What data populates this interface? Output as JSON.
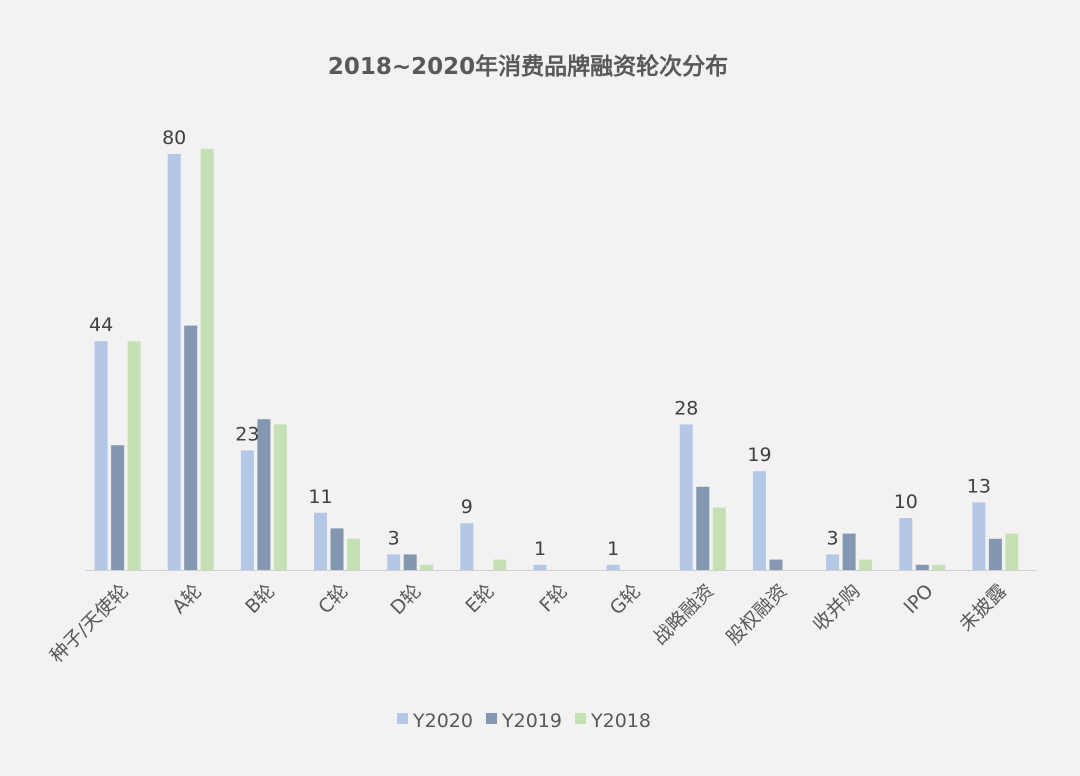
{
  "chart_data": {
    "type": "bar",
    "title": "2018~2020年消费品牌融资轮次分布",
    "xlabel": "",
    "ylabel": "",
    "ylim": [
      0,
      82
    ],
    "grid": false,
    "legend_position": "bottom",
    "categories": [
      "种子/天使轮",
      "A轮",
      "B轮",
      "C轮",
      "D轮",
      "E轮",
      "F轮",
      "G轮",
      "战略融资",
      "股权融资",
      "收并购",
      "IPO",
      "未披露"
    ],
    "series": [
      {
        "name": "Y2020",
        "color": "#b4c7e7",
        "values": [
          44,
          80,
          23,
          11,
          3,
          9,
          1,
          1,
          28,
          19,
          3,
          10,
          13
        ],
        "labels": [
          "44",
          "80",
          "23",
          "11",
          "3",
          "9",
          "1",
          "1",
          "28",
          "19",
          "3",
          "10",
          "13"
        ]
      },
      {
        "name": "Y2019",
        "color": "#8497b0",
        "values": [
          24,
          47,
          29,
          8,
          3,
          0,
          0,
          0,
          16,
          2,
          7,
          1,
          6
        ],
        "labels": [
          "",
          "",
          "",
          "",
          "",
          "",
          "",
          "",
          "",
          "",
          "",
          "",
          ""
        ]
      },
      {
        "name": "Y2018",
        "color": "#c5e0b4",
        "values": [
          44,
          81,
          28,
          6,
          1,
          2,
          0,
          0,
          12,
          0,
          2,
          1,
          7
        ],
        "labels": [
          "",
          "",
          "",
          "",
          "",
          "",
          "",
          "",
          "",
          "",
          "",
          "",
          ""
        ]
      }
    ]
  }
}
